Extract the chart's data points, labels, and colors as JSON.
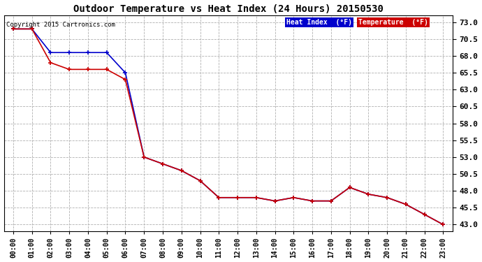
{
  "title": "Outdoor Temperature vs Heat Index (24 Hours) 20150530",
  "copyright": "Copyright 2015 Cartronics.com",
  "background_color": "#ffffff",
  "plot_bg_color": "#ffffff",
  "grid_color": "#b0b0b0",
  "x_labels": [
    "00:00",
    "01:00",
    "02:00",
    "03:00",
    "04:00",
    "05:00",
    "06:00",
    "07:00",
    "08:00",
    "09:00",
    "10:00",
    "11:00",
    "12:00",
    "13:00",
    "14:00",
    "15:00",
    "16:00",
    "17:00",
    "18:00",
    "19:00",
    "20:00",
    "21:00",
    "22:00",
    "23:00"
  ],
  "y_ticks": [
    43.0,
    45.5,
    48.0,
    50.5,
    53.0,
    55.5,
    58.0,
    60.5,
    63.0,
    65.5,
    68.0,
    70.5,
    73.0
  ],
  "ylim": [
    42.0,
    74.0
  ],
  "temperature": [
    72.0,
    72.0,
    67.0,
    66.0,
    66.0,
    66.0,
    64.5,
    53.0,
    52.0,
    51.0,
    49.5,
    47.0,
    47.0,
    47.0,
    46.5,
    47.0,
    46.5,
    46.5,
    48.5,
    47.5,
    47.0,
    46.0,
    44.5,
    43.0
  ],
  "heat_index": [
    72.0,
    72.0,
    68.5,
    68.5,
    68.5,
    68.5,
    65.5,
    53.0,
    52.0,
    51.0,
    49.5,
    47.0,
    47.0,
    47.0,
    46.5,
    47.0,
    46.5,
    46.5,
    48.5,
    47.5,
    47.0,
    46.0,
    44.5,
    43.0
  ],
  "temp_color": "#cc0000",
  "heat_color": "#0000cc",
  "legend_heat_bg": "#0000cc",
  "legend_temp_bg": "#cc0000",
  "legend_heat_label": "Heat Index  (°F)",
  "legend_temp_label": "Temperature  (°F)"
}
